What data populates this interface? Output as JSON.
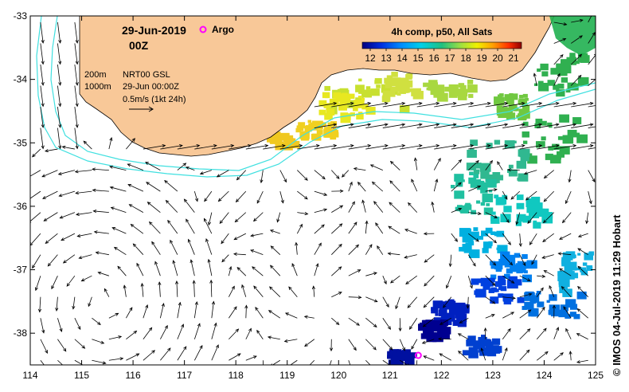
{
  "map": {
    "date": "29-Jun-2019",
    "hour": "00Z",
    "argo_label": "Argo",
    "colorbar_title": "4h comp, p50, All Sats",
    "colorbar_ticks": [
      "12",
      "13",
      "14",
      "15",
      "16",
      "17",
      "18",
      "19",
      "20",
      "21"
    ],
    "colorbar_range": [
      11.5,
      21.5
    ],
    "contour_labels": [
      "200m",
      "1000m"
    ],
    "product": "NRT00 GSL",
    "product_time": "29-Jun 00:00Z",
    "arrow_scale": "0.5m/s (1kt 24h)",
    "credit": "© IMOS 04-Jul-2019 11:29 Hobart",
    "x_ticks": [
      "114",
      "115",
      "116",
      "117",
      "118",
      "119",
      "120",
      "121",
      "122",
      "123",
      "124",
      "125"
    ],
    "y_ticks": [
      "-33",
      "-34",
      "-35",
      "-36",
      "-37",
      "-38"
    ],
    "lon_range": [
      114,
      125
    ],
    "lat_range": [
      -38.5,
      -33
    ],
    "argo_float": {
      "lon": 121.55,
      "lat": -38.35
    },
    "colors": {
      "land": "#f8c898",
      "contour": "#40e0e0",
      "argo": "#ff00ff"
    }
  }
}
